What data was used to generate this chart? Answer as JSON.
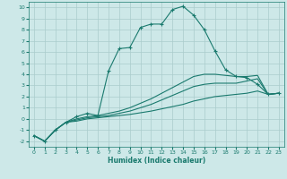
{
  "title": "",
  "xlabel": "Humidex (Indice chaleur)",
  "bg_color": "#cde8e8",
  "grid_color": "#aacccc",
  "line_color": "#1a7a6e",
  "xlim": [
    -0.5,
    23.5
  ],
  "ylim": [
    -2.5,
    10.5
  ],
  "xticks": [
    0,
    1,
    2,
    3,
    4,
    5,
    6,
    7,
    8,
    9,
    10,
    11,
    12,
    13,
    14,
    15,
    16,
    17,
    18,
    19,
    20,
    21,
    22,
    23
  ],
  "yticks": [
    -2,
    -1,
    0,
    1,
    2,
    3,
    4,
    5,
    6,
    7,
    8,
    9,
    10
  ],
  "series": [
    {
      "x": [
        0,
        1,
        2,
        3,
        4,
        5,
        6,
        7,
        8,
        9,
        10,
        11,
        12,
        13,
        14,
        15,
        16,
        17,
        18,
        19,
        20,
        21,
        22,
        23
      ],
      "y": [
        -1.5,
        -2.0,
        -1.0,
        -0.3,
        0.2,
        0.5,
        0.3,
        4.3,
        6.3,
        6.4,
        8.2,
        8.5,
        8.5,
        9.8,
        10.1,
        9.3,
        8.0,
        6.1,
        4.4,
        3.8,
        3.7,
        3.1,
        2.2,
        2.3
      ],
      "marker": true
    },
    {
      "x": [
        0,
        1,
        2,
        3,
        4,
        5,
        6,
        7,
        8,
        9,
        10,
        11,
        12,
        13,
        14,
        15,
        16,
        17,
        18,
        19,
        20,
        21,
        22,
        23
      ],
      "y": [
        -1.5,
        -2.0,
        -1.0,
        -0.3,
        -0.2,
        0.0,
        0.1,
        0.2,
        0.3,
        0.4,
        0.55,
        0.7,
        0.9,
        1.1,
        1.3,
        1.6,
        1.8,
        2.0,
        2.1,
        2.2,
        2.3,
        2.5,
        2.2,
        2.3
      ],
      "marker": false
    },
    {
      "x": [
        0,
        1,
        2,
        3,
        4,
        5,
        6,
        7,
        8,
        9,
        10,
        11,
        12,
        13,
        14,
        15,
        16,
        17,
        18,
        19,
        20,
        21,
        22,
        23
      ],
      "y": [
        -1.5,
        -2.0,
        -1.0,
        -0.3,
        -0.1,
        0.1,
        0.2,
        0.3,
        0.5,
        0.7,
        1.0,
        1.3,
        1.7,
        2.1,
        2.5,
        2.9,
        3.1,
        3.2,
        3.2,
        3.2,
        3.4,
        3.6,
        2.2,
        2.3
      ],
      "marker": false
    },
    {
      "x": [
        0,
        1,
        2,
        3,
        4,
        5,
        6,
        7,
        8,
        9,
        10,
        11,
        12,
        13,
        14,
        15,
        16,
        17,
        18,
        19,
        20,
        21,
        22,
        23
      ],
      "y": [
        -1.5,
        -2.0,
        -1.0,
        -0.3,
        0.0,
        0.2,
        0.3,
        0.5,
        0.7,
        1.0,
        1.4,
        1.8,
        2.3,
        2.8,
        3.3,
        3.8,
        4.0,
        4.0,
        3.9,
        3.8,
        3.8,
        3.9,
        2.2,
        2.3
      ],
      "marker": false
    }
  ]
}
